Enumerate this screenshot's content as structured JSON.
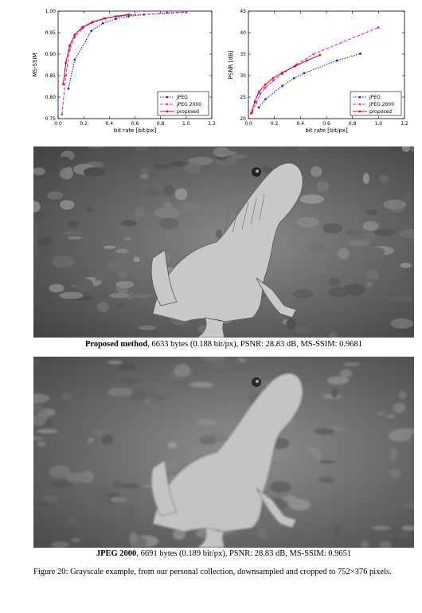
{
  "chart_data": [
    {
      "type": "line",
      "title": "",
      "xlabel": "bit rate [bit/px]",
      "ylabel": "MS-SSIM",
      "xlim": [
        0.0,
        1.2
      ],
      "ylim": [
        0.75,
        1.0
      ],
      "xticks": [
        "0.0",
        "0.2",
        "0.4",
        "0.6",
        "0.8",
        "1.0",
        "1.2"
      ],
      "yticks": [
        "0.75",
        "0.80",
        "0.85",
        "0.90",
        "0.95",
        "1.00"
      ],
      "legend_position": "lower-right",
      "grid": false,
      "series": [
        {
          "name": "JPEG",
          "color": "#1f1fd6",
          "style": "dotted",
          "x": [
            0.08,
            0.13,
            0.26,
            0.35,
            0.45,
            0.55,
            0.67,
            0.85,
            1.0
          ],
          "y": [
            0.82,
            0.887,
            0.954,
            0.972,
            0.982,
            0.988,
            0.992,
            0.996,
            0.998
          ]
        },
        {
          "name": "JPEG 2000",
          "color": "#cc33cc",
          "style": "dashed",
          "x": [
            0.03,
            0.06,
            0.09,
            0.13,
            0.19,
            0.26,
            0.37,
            0.47,
            0.57,
            1.0
          ],
          "y": [
            0.76,
            0.85,
            0.91,
            0.94,
            0.96,
            0.972,
            0.983,
            0.988,
            0.991,
            0.997
          ]
        },
        {
          "name": "proposed",
          "color": "#dd1111",
          "style": "solid",
          "x": [
            0.04,
            0.06,
            0.09,
            0.13,
            0.19,
            0.27,
            0.36,
            0.45,
            0.55
          ],
          "y": [
            0.83,
            0.88,
            0.92,
            0.945,
            0.963,
            0.975,
            0.983,
            0.988,
            0.992
          ]
        }
      ]
    },
    {
      "type": "line",
      "title": "",
      "xlabel": "bit rate [bit/px]",
      "ylabel": "PSNR [dB]",
      "xlim": [
        0.0,
        1.2
      ],
      "ylim": [
        20,
        45
      ],
      "xticks": [
        "0.0",
        "0.2",
        "0.4",
        "0.6",
        "0.8",
        "1.0",
        "1.2"
      ],
      "yticks": [
        "20",
        "25",
        "30",
        "35",
        "40",
        "45"
      ],
      "legend_position": "lower-right",
      "grid": false,
      "series": [
        {
          "name": "JPEG",
          "color": "#1f1fd6",
          "style": "dotted",
          "x": [
            0.08,
            0.13,
            0.26,
            0.35,
            0.43,
            0.68,
            0.86
          ],
          "y": [
            22.6,
            24.5,
            27.6,
            29.4,
            30.6,
            33.5,
            35.1
          ]
        },
        {
          "name": "JPEG 2000",
          "color": "#cc33cc",
          "style": "dashed",
          "x": [
            0.03,
            0.06,
            0.09,
            0.13,
            0.19,
            0.26,
            0.37,
            0.5,
            1.0
          ],
          "y": [
            21.5,
            23.7,
            25.7,
            27.2,
            28.8,
            30.4,
            32.6,
            35.0,
            41.2
          ]
        },
        {
          "name": "proposed",
          "color": "#dd1111",
          "style": "solid",
          "x": [
            0.02,
            0.05,
            0.08,
            0.13,
            0.19,
            0.26,
            0.36,
            0.45,
            0.55
          ],
          "y": [
            21.2,
            24.0,
            26.2,
            27.9,
            29.4,
            30.7,
            32.2,
            33.5,
            34.8
          ]
        }
      ]
    }
  ],
  "photos": {
    "proposed": {
      "icon": "bearded-dragon-photo-proposed"
    },
    "jpeg2000": {
      "icon": "bearded-dragon-photo-jpeg2000"
    }
  },
  "captions": {
    "proposed": {
      "method": "Proposed method",
      "details": ", 6633 bytes (0.188 bit/px), PSNR: 28.83 dB, MS-SSIM: 0.9681"
    },
    "jpeg2000": {
      "method": "JPEG 2000",
      "details": ", 6691 bytes (0.189 bit/px), PSNR: 28.83 dB, MS-SSIM: 0.9651"
    }
  },
  "figure_caption": "Figure 20: Grayscale example, from our personal collection, downsampled and cropped to 752×376 pixels."
}
